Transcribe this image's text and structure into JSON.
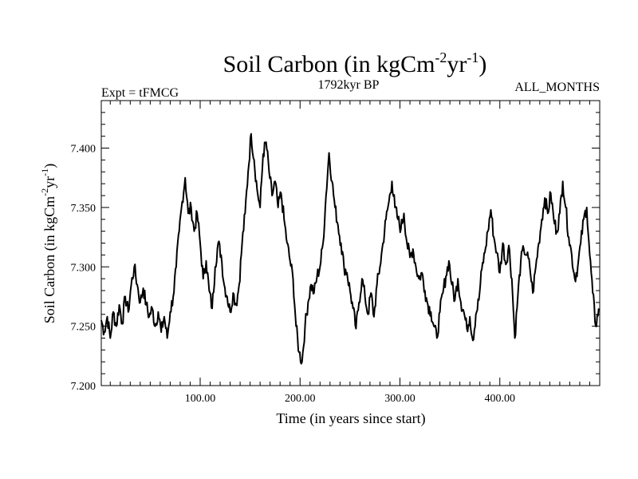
{
  "chart_data": {
    "type": "line",
    "title": {
      "main": "Soil Carbon (in kgCm",
      "sup1": "-2",
      "mid": "yr",
      "sup2": "-1",
      "end": ")"
    },
    "subtitle_left": "Expt = tFMCG",
    "subtitle_center": "1792kyr BP",
    "subtitle_right": "ALL_MONTHS",
    "xlabel": "Time (in years since start)",
    "ylabel": {
      "main": "Soil Carbon (in kgCm",
      "sup1": "-2",
      "mid": "yr",
      "sup2": "-1",
      "end": ")"
    },
    "xlim": [
      1,
      500
    ],
    "ylim": [
      7.2,
      7.44
    ],
    "xticks": [
      {
        "value": 100,
        "label": "100.00"
      },
      {
        "value": 200,
        "label": "200.00"
      },
      {
        "value": 300,
        "label": "300.00"
      },
      {
        "value": 400,
        "label": "400.00"
      }
    ],
    "yticks": [
      {
        "value": 7.2,
        "label": "7.200"
      },
      {
        "value": 7.25,
        "label": "7.250"
      },
      {
        "value": 7.3,
        "label": "7.300"
      },
      {
        "value": 7.35,
        "label": "7.350"
      },
      {
        "value": 7.4,
        "label": "7.400"
      }
    ],
    "series": [
      {
        "name": "Soil Carbon",
        "color": "#000000",
        "points": [
          [
            1,
            7.255
          ],
          [
            4,
            7.245
          ],
          [
            7,
            7.258
          ],
          [
            10,
            7.24
          ],
          [
            13,
            7.262
          ],
          [
            16,
            7.25
          ],
          [
            19,
            7.268
          ],
          [
            22,
            7.252
          ],
          [
            25,
            7.275
          ],
          [
            28,
            7.262
          ],
          [
            31,
            7.285
          ],
          [
            34,
            7.3
          ],
          [
            37,
            7.285
          ],
          [
            40,
            7.27
          ],
          [
            43,
            7.282
          ],
          [
            46,
            7.268
          ],
          [
            49,
            7.258
          ],
          [
            52,
            7.265
          ],
          [
            55,
            7.25
          ],
          [
            58,
            7.262
          ],
          [
            61,
            7.245
          ],
          [
            64,
            7.258
          ],
          [
            67,
            7.24
          ],
          [
            70,
            7.262
          ],
          [
            73,
            7.275
          ],
          [
            76,
            7.3
          ],
          [
            79,
            7.33
          ],
          [
            82,
            7.355
          ],
          [
            85,
            7.375
          ],
          [
            88,
            7.345
          ],
          [
            91,
            7.35
          ],
          [
            94,
            7.33
          ],
          [
            97,
            7.345
          ],
          [
            100,
            7.32
          ],
          [
            103,
            7.29
          ],
          [
            106,
            7.305
          ],
          [
            109,
            7.28
          ],
          [
            112,
            7.265
          ],
          [
            115,
            7.3
          ],
          [
            118,
            7.32
          ],
          [
            121,
            7.31
          ],
          [
            124,
            7.285
          ],
          [
            127,
            7.275
          ],
          [
            130,
            7.262
          ],
          [
            133,
            7.278
          ],
          [
            136,
            7.268
          ],
          [
            139,
            7.285
          ],
          [
            142,
            7.32
          ],
          [
            145,
            7.345
          ],
          [
            148,
            7.38
          ],
          [
            151,
            7.412
          ],
          [
            154,
            7.39
          ],
          [
            157,
            7.365
          ],
          [
            160,
            7.35
          ],
          [
            163,
            7.395
          ],
          [
            166,
            7.405
          ],
          [
            169,
            7.38
          ],
          [
            172,
            7.36
          ],
          [
            175,
            7.372
          ],
          [
            178,
            7.35
          ],
          [
            181,
            7.362
          ],
          [
            184,
            7.34
          ],
          [
            187,
            7.32
          ],
          [
            190,
            7.305
          ],
          [
            193,
            7.29
          ],
          [
            196,
            7.25
          ],
          [
            199,
            7.228
          ],
          [
            202,
            7.22
          ],
          [
            205,
            7.25
          ],
          [
            208,
            7.27
          ],
          [
            211,
            7.285
          ],
          [
            214,
            7.278
          ],
          [
            217,
            7.292
          ],
          [
            220,
            7.3
          ],
          [
            223,
            7.32
          ],
          [
            226,
            7.36
          ],
          [
            229,
            7.396
          ],
          [
            232,
            7.372
          ],
          [
            235,
            7.35
          ],
          [
            238,
            7.335
          ],
          [
            241,
            7.32
          ],
          [
            244,
            7.3
          ],
          [
            247,
            7.295
          ],
          [
            250,
            7.28
          ],
          [
            253,
            7.265
          ],
          [
            256,
            7.248
          ],
          [
            259,
            7.27
          ],
          [
            262,
            7.29
          ],
          [
            265,
            7.275
          ],
          [
            268,
            7.26
          ],
          [
            271,
            7.278
          ],
          [
            274,
            7.258
          ],
          [
            277,
            7.285
          ],
          [
            280,
            7.3
          ],
          [
            283,
            7.32
          ],
          [
            286,
            7.34
          ],
          [
            289,
            7.355
          ],
          [
            292,
            7.372
          ],
          [
            295,
            7.35
          ],
          [
            298,
            7.34
          ],
          [
            301,
            7.332
          ],
          [
            304,
            7.345
          ],
          [
            307,
            7.32
          ],
          [
            310,
            7.308
          ],
          [
            313,
            7.315
          ],
          [
            316,
            7.3
          ],
          [
            319,
            7.29
          ],
          [
            322,
            7.295
          ],
          [
            325,
            7.28
          ],
          [
            328,
            7.268
          ],
          [
            331,
            7.262
          ],
          [
            334,
            7.25
          ],
          [
            337,
            7.24
          ],
          [
            340,
            7.262
          ],
          [
            343,
            7.278
          ],
          [
            346,
            7.292
          ],
          [
            349,
            7.305
          ],
          [
            352,
            7.285
          ],
          [
            355,
            7.272
          ],
          [
            358,
            7.29
          ],
          [
            361,
            7.27
          ],
          [
            364,
            7.262
          ],
          [
            367,
            7.248
          ],
          [
            370,
            7.258
          ],
          [
            373,
            7.238
          ],
          [
            376,
            7.26
          ],
          [
            379,
            7.272
          ],
          [
            382,
            7.298
          ],
          [
            385,
            7.312
          ],
          [
            388,
            7.33
          ],
          [
            391,
            7.348
          ],
          [
            394,
            7.325
          ],
          [
            397,
            7.312
          ],
          [
            400,
            7.295
          ],
          [
            403,
            7.32
          ],
          [
            406,
            7.302
          ],
          [
            409,
            7.318
          ],
          [
            412,
            7.29
          ],
          [
            415,
            7.24
          ],
          [
            418,
            7.275
          ],
          [
            421,
            7.305
          ],
          [
            424,
            7.315
          ],
          [
            427,
            7.31
          ],
          [
            430,
            7.3
          ],
          [
            433,
            7.278
          ],
          [
            436,
            7.3
          ],
          [
            439,
            7.32
          ],
          [
            442,
            7.34
          ],
          [
            445,
            7.358
          ],
          [
            448,
            7.345
          ],
          [
            451,
            7.362
          ],
          [
            454,
            7.34
          ],
          [
            457,
            7.33
          ],
          [
            460,
            7.345
          ],
          [
            463,
            7.372
          ],
          [
            466,
            7.35
          ],
          [
            469,
            7.325
          ],
          [
            472,
            7.31
          ],
          [
            475,
            7.29
          ],
          [
            478,
            7.3
          ],
          [
            481,
            7.32
          ],
          [
            484,
            7.34
          ],
          [
            487,
            7.35
          ],
          [
            490,
            7.31
          ],
          [
            493,
            7.278
          ],
          [
            496,
            7.25
          ],
          [
            499,
            7.265
          ]
        ]
      }
    ]
  }
}
